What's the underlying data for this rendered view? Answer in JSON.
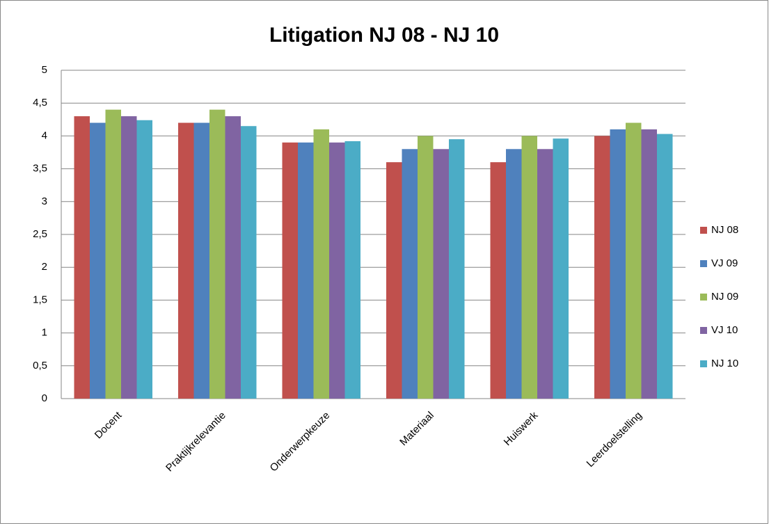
{
  "chart_data": {
    "type": "bar",
    "title": "Litigation NJ 08 - NJ 10",
    "categories": [
      "Docent",
      "Praktijkrelevantie",
      "Onderwerpkeuze",
      "Materiaal",
      "Huiswerk",
      "Leerdoelstelling"
    ],
    "series": [
      {
        "name": "NJ 08",
        "color": "#c0504d",
        "values": [
          4.3,
          4.2,
          3.9,
          3.6,
          3.6,
          4.0
        ]
      },
      {
        "name": "VJ 09",
        "color": "#4f81bd",
        "values": [
          4.2,
          4.2,
          3.9,
          3.8,
          3.8,
          4.1
        ]
      },
      {
        "name": "NJ 09",
        "color": "#9bbb59",
        "values": [
          4.4,
          4.4,
          4.1,
          4.0,
          4.0,
          4.2
        ]
      },
      {
        "name": "VJ 10",
        "color": "#8064a2",
        "values": [
          4.3,
          4.3,
          3.9,
          3.8,
          3.8,
          4.1
        ]
      },
      {
        "name": "NJ 10",
        "color": "#4bacc6",
        "values": [
          4.24,
          4.15,
          3.92,
          3.95,
          3.96,
          4.03
        ]
      }
    ],
    "ylim": [
      0,
      5
    ],
    "yticks": [
      0,
      {
        "value": 0.5,
        "label": "0,5"
      },
      1,
      {
        "value": 1.5,
        "label": "1,5"
      },
      2,
      {
        "value": 2.5,
        "label": "2,5"
      },
      3,
      {
        "value": 3.5,
        "label": "3,5"
      },
      4,
      {
        "value": 4.5,
        "label": "4,5"
      },
      5
    ],
    "grid": true,
    "legend": "right"
  }
}
